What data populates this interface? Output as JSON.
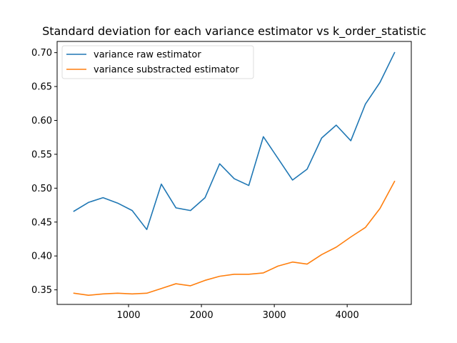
{
  "chart_data": {
    "type": "line",
    "title": "Standard deviation for each variance estimator vs k_order_statistic",
    "xlabel": "",
    "ylabel": "",
    "xlim": [
      20,
      4880
    ],
    "ylim": [
      0.3285,
      0.7165
    ],
    "x_ticks": [
      1000,
      2000,
      3000,
      4000
    ],
    "y_ticks": [
      0.35,
      0.4,
      0.45,
      0.5,
      0.55,
      0.6,
      0.65,
      0.7
    ],
    "grid": false,
    "legend_position": "top-left",
    "x": [
      250,
      450,
      650,
      850,
      1050,
      1250,
      1450,
      1650,
      1850,
      2050,
      2250,
      2450,
      2650,
      2850,
      3050,
      3250,
      3450,
      3650,
      3850,
      4050,
      4250,
      4450,
      4650
    ],
    "series": [
      {
        "name": "variance raw estimator",
        "color": "#1f77b4",
        "values": [
          0.466,
          0.479,
          0.486,
          0.478,
          0.467,
          0.439,
          0.506,
          0.471,
          0.467,
          0.486,
          0.536,
          0.514,
          0.504,
          0.576,
          0.544,
          0.512,
          0.528,
          0.574,
          0.593,
          0.57,
          0.624,
          0.656,
          0.7
        ]
      },
      {
        "name": "variance substracted estimator",
        "color": "#ff7f0e",
        "values": [
          0.345,
          0.342,
          0.344,
          0.345,
          0.344,
          0.345,
          0.352,
          0.359,
          0.356,
          0.364,
          0.37,
          0.373,
          0.373,
          0.375,
          0.385,
          0.391,
          0.388,
          0.402,
          0.413,
          0.428,
          0.442,
          0.47,
          0.51
        ]
      }
    ]
  }
}
